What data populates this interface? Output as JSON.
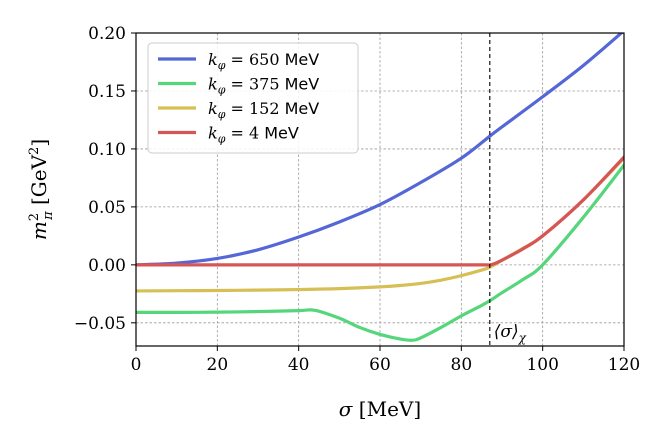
{
  "chart_data": {
    "type": "line",
    "title": "",
    "xlabel": "σ [MeV]",
    "ylabel": "m²π [GeV²]",
    "ylabel_parts": {
      "sym": "m",
      "sup": "2",
      "sub": "π",
      "unit_open": " [GeV",
      "unit_sup": "2",
      "unit_close": "]"
    },
    "xlabel_parts": {
      "sym": "σ",
      "unit": " [MeV]"
    },
    "xlim": [
      0,
      120
    ],
    "ylim": [
      -0.07,
      0.2
    ],
    "xticks": [
      0,
      20,
      40,
      60,
      80,
      100,
      120
    ],
    "yticks": [
      -0.05,
      0.0,
      0.05,
      0.1,
      0.15,
      0.2
    ],
    "xtick_labels": [
      "0",
      "20",
      "40",
      "60",
      "80",
      "100",
      "120"
    ],
    "ytick_labels": [
      "−0.05",
      "0.00",
      "0.05",
      "0.10",
      "0.15",
      "0.20"
    ],
    "grid": true,
    "legend_position": "top-left",
    "vline": {
      "x": 87,
      "label": "⟨σ⟩",
      "label_sub": "χ"
    },
    "series": [
      {
        "name": "kφ = 650 MeV",
        "label_sym": "k",
        "label_sub": "φ",
        "label_eq": " = 650 ",
        "label_unit": "MeV",
        "color": "#5566d6",
        "x": [
          0,
          10,
          20,
          30,
          40,
          50,
          60,
          70,
          80,
          87,
          90,
          100,
          110,
          120
        ],
        "y": [
          0.0,
          0.0015,
          0.0055,
          0.013,
          0.024,
          0.037,
          0.052,
          0.071,
          0.092,
          0.111,
          0.119,
          0.145,
          0.172,
          0.202
        ]
      },
      {
        "name": "kφ = 375 MeV",
        "label_sym": "k",
        "label_sub": "φ",
        "label_eq": " = 375 ",
        "label_unit": "MeV",
        "color": "#55d67a",
        "x": [
          0,
          10,
          20,
          30,
          40,
          44,
          50,
          55,
          60,
          65,
          68,
          70,
          75,
          80,
          85,
          87,
          90,
          95,
          100,
          110,
          120
        ],
        "y": [
          -0.041,
          -0.041,
          -0.0408,
          -0.0403,
          -0.0395,
          -0.0392,
          -0.046,
          -0.054,
          -0.06,
          -0.064,
          -0.065,
          -0.063,
          -0.054,
          -0.044,
          -0.035,
          -0.031,
          -0.024,
          -0.013,
          0.0,
          0.041,
          0.086
        ]
      },
      {
        "name": "kφ = 152 MeV",
        "label_sym": "k",
        "label_sub": "φ",
        "label_eq": " = 152 ",
        "label_unit": "MeV",
        "color": "#d6bf55",
        "x": [
          0,
          10,
          20,
          30,
          40,
          50,
          60,
          65,
          70,
          75,
          80,
          85,
          87,
          90,
          95,
          100,
          110,
          120
        ],
        "y": [
          -0.0225,
          -0.0223,
          -0.0221,
          -0.0218,
          -0.0213,
          -0.0205,
          -0.019,
          -0.0178,
          -0.016,
          -0.0132,
          -0.0093,
          -0.0045,
          -0.002,
          0.004,
          0.014,
          0.025,
          0.056,
          0.092
        ]
      },
      {
        "name": "kφ = 4 MeV",
        "label_sym": "k",
        "label_sub": "φ",
        "label_eq": " = 4 ",
        "label_unit": "MeV",
        "color": "#d65555",
        "x": [
          0,
          20,
          40,
          60,
          80,
          86,
          87,
          88,
          90,
          95,
          100,
          110,
          120
        ],
        "y": [
          0.0,
          0.0,
          0.0,
          0.0,
          0.0,
          0.0,
          0.0,
          0.0008,
          0.004,
          0.0135,
          0.025,
          0.056,
          0.093
        ]
      }
    ]
  }
}
